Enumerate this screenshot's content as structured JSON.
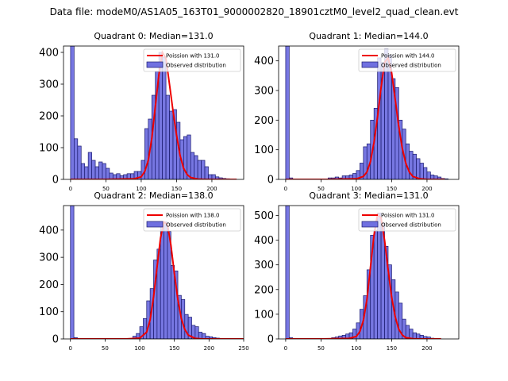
{
  "figure": {
    "suptitle": "Data file: modeM0/AS1A05_163T01_9000002820_18901cztM0_level2_quad_clean.evt"
  },
  "colors": {
    "hist_fill": "#7070e0",
    "hist_edge": "#1a1a6e",
    "curve": "#ee0000"
  },
  "chart_data": [
    {
      "type": "bar",
      "title": "Quadrant 0: Median=131.0",
      "xlim": [
        -10,
        245
      ],
      "ylim": [
        0,
        420
      ],
      "xticks": [
        0,
        50,
        100,
        150,
        200
      ],
      "yticks": [
        0,
        100,
        200,
        300,
        400
      ],
      "bin_width": 5,
      "hist_x": [
        0,
        5,
        10,
        15,
        20,
        25,
        30,
        35,
        40,
        45,
        50,
        55,
        60,
        65,
        70,
        75,
        80,
        85,
        90,
        95,
        100,
        105,
        110,
        115,
        120,
        125,
        130,
        135,
        140,
        145,
        150,
        155,
        160,
        165,
        170,
        175,
        180,
        185,
        190,
        195,
        200,
        205,
        210,
        215,
        220
      ],
      "hist_values": [
        420,
        128,
        105,
        50,
        40,
        85,
        60,
        40,
        55,
        50,
        35,
        20,
        15,
        18,
        12,
        15,
        18,
        18,
        25,
        25,
        60,
        160,
        190,
        265,
        340,
        400,
        385,
        265,
        215,
        220,
        180,
        125,
        135,
        140,
        85,
        75,
        60,
        60,
        40,
        15,
        15,
        8,
        5,
        3,
        2
      ],
      "curve_x": [
        0,
        50,
        90,
        100,
        105,
        110,
        115,
        120,
        125,
        130,
        135,
        140,
        145,
        150,
        155,
        160,
        165,
        170,
        180,
        190,
        200,
        210,
        220,
        235
      ],
      "curve_values": [
        0,
        0,
        2,
        8,
        25,
        60,
        130,
        230,
        330,
        400,
        380,
        300,
        215,
        140,
        75,
        35,
        15,
        6,
        1,
        0,
        0,
        0,
        0,
        0
      ],
      "legend": [
        "Poission with 131.0",
        "Observed distribution"
      ],
      "legend_position": "top-right"
    },
    {
      "type": "bar",
      "title": "Quadrant 1: Median=144.0",
      "xlim": [
        -10,
        245
      ],
      "ylim": [
        0,
        450
      ],
      "xticks": [
        0,
        50,
        100,
        150,
        200
      ],
      "yticks": [
        0,
        100,
        200,
        300,
        400
      ],
      "bin_width": 5,
      "hist_x": [
        0,
        5,
        60,
        65,
        70,
        75,
        80,
        85,
        90,
        95,
        100,
        105,
        110,
        115,
        120,
        125,
        130,
        135,
        140,
        145,
        150,
        155,
        160,
        165,
        170,
        175,
        180,
        185,
        190,
        195,
        200,
        205,
        210,
        215,
        220,
        225
      ],
      "hist_values": [
        450,
        5,
        5,
        5,
        8,
        5,
        12,
        12,
        15,
        20,
        30,
        55,
        110,
        120,
        200,
        240,
        410,
        395,
        440,
        420,
        340,
        310,
        200,
        170,
        120,
        95,
        85,
        70,
        55,
        40,
        25,
        15,
        12,
        8,
        3,
        2
      ],
      "curve_x": [
        0,
        60,
        100,
        110,
        115,
        120,
        125,
        130,
        135,
        140,
        145,
        150,
        155,
        160,
        165,
        170,
        175,
        180,
        190,
        200,
        210,
        225
      ],
      "curve_values": [
        0,
        0,
        2,
        10,
        25,
        60,
        125,
        210,
        310,
        395,
        410,
        360,
        270,
        180,
        105,
        55,
        25,
        10,
        2,
        0,
        0,
        0
      ],
      "legend": [
        "Poission with 144.0",
        "Observed distribution"
      ],
      "legend_position": "top-right"
    },
    {
      "type": "bar",
      "title": "Quadrant 2: Median=138.0",
      "xlim": [
        -10,
        250
      ],
      "ylim": [
        0,
        490
      ],
      "xticks": [
        0,
        50,
        100,
        150,
        200,
        250
      ],
      "yticks": [
        0,
        100,
        200,
        300,
        400
      ],
      "bin_width": 5,
      "hist_x": [
        0,
        5,
        90,
        95,
        100,
        105,
        110,
        115,
        120,
        125,
        130,
        135,
        140,
        145,
        150,
        155,
        160,
        165,
        170,
        175,
        180,
        185,
        190,
        195,
        200,
        205,
        210,
        215,
        220
      ],
      "hist_values": [
        490,
        5,
        10,
        20,
        45,
        75,
        140,
        185,
        290,
        330,
        430,
        430,
        395,
        270,
        250,
        160,
        145,
        90,
        80,
        50,
        45,
        25,
        20,
        10,
        8,
        5,
        3,
        2,
        1
      ],
      "curve_x": [
        0,
        80,
        100,
        110,
        115,
        120,
        125,
        130,
        135,
        140,
        145,
        150,
        155,
        160,
        165,
        170,
        180,
        190,
        200,
        250
      ],
      "curve_values": [
        0,
        0,
        3,
        25,
        70,
        155,
        265,
        370,
        430,
        420,
        345,
        240,
        145,
        75,
        35,
        14,
        2,
        0,
        0,
        0
      ],
      "legend": [
        "Poission with 138.0",
        "Observed distribution"
      ],
      "legend_position": "top-right"
    },
    {
      "type": "bar",
      "title": "Quadrant 3: Median=131.0",
      "xlim": [
        -10,
        245
      ],
      "ylim": [
        0,
        540
      ],
      "xticks": [
        0,
        50,
        100,
        150,
        200
      ],
      "yticks": [
        0,
        100,
        200,
        300,
        400,
        500
      ],
      "bin_width": 5,
      "hist_x": [
        0,
        5,
        65,
        70,
        75,
        80,
        85,
        90,
        95,
        100,
        105,
        110,
        115,
        120,
        125,
        130,
        135,
        140,
        145,
        150,
        155,
        160,
        165,
        170,
        175,
        180,
        185,
        190,
        195,
        200,
        205,
        210
      ],
      "hist_values": [
        540,
        5,
        5,
        8,
        12,
        15,
        20,
        25,
        40,
        65,
        120,
        175,
        280,
        420,
        440,
        510,
        470,
        375,
        300,
        240,
        190,
        145,
        80,
        55,
        40,
        25,
        20,
        15,
        10,
        8,
        3,
        2
      ],
      "curve_x": [
        0,
        50,
        90,
        100,
        105,
        110,
        115,
        120,
        125,
        130,
        135,
        140,
        145,
        150,
        155,
        160,
        165,
        170,
        180,
        190,
        200,
        210,
        220
      ],
      "curve_values": [
        0,
        0,
        2,
        10,
        30,
        75,
        160,
        290,
        420,
        505,
        490,
        400,
        280,
        170,
        90,
        40,
        16,
        5,
        1,
        0,
        0,
        0,
        0
      ],
      "legend": [
        "Poission with 131.0",
        "Observed distribution"
      ],
      "legend_position": "top-right"
    }
  ]
}
